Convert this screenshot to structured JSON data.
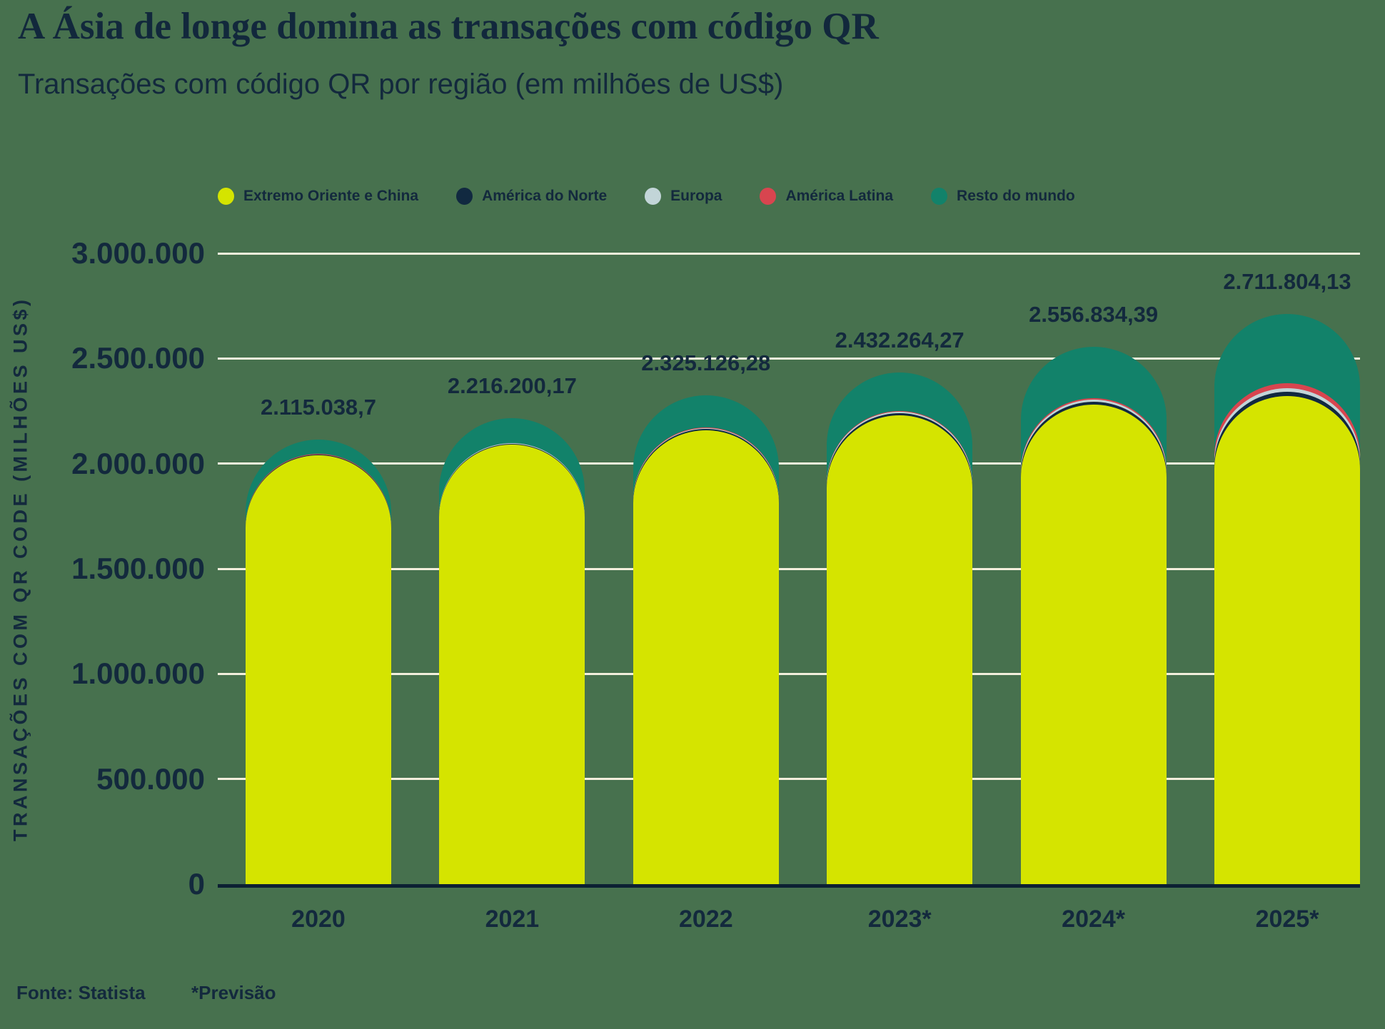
{
  "header": {
    "title": "A Ásia de longe domina as transações com código QR",
    "subtitle": "Transações com código QR por região (em milhões de US$)"
  },
  "legend": [
    {
      "label": "Extremo Oriente e China",
      "color": "#d5e400"
    },
    {
      "label": "América do Norte",
      "color": "#112940"
    },
    {
      "label": "Europa",
      "color": "#c2d5d8"
    },
    {
      "label": "América Latina",
      "color": "#d8454f"
    },
    {
      "label": "Resto do mundo",
      "color": "#12826a"
    }
  ],
  "y_axis": {
    "title": "TRANSAÇÕES COM QR CODE (MILHÕES US$)",
    "ticks": [
      {
        "value": 3000000,
        "label": "3.000.000"
      },
      {
        "value": 2500000,
        "label": "2.500.000"
      },
      {
        "value": 2000000,
        "label": "2.000.000"
      },
      {
        "value": 1500000,
        "label": "1.500.000"
      },
      {
        "value": 1000000,
        "label": "1.000.000"
      },
      {
        "value": 500000,
        "label": "500.000"
      },
      {
        "value": 0,
        "label": "0"
      }
    ]
  },
  "footer": {
    "source": "Fonte: Statista",
    "note": "*Previsão"
  },
  "colors": {
    "background": "#47714e",
    "text": "#13293d",
    "gridline": "#f3eedc",
    "axis_line": "#0c2033"
  },
  "chart_data": {
    "type": "bar",
    "stacked": true,
    "title": "Transações com código QR por região (em milhões de US$)",
    "xlabel": "",
    "ylabel": "TRANSAÇÕES COM QR CODE (MILHÕES US$)",
    "ylim": [
      0,
      3000000
    ],
    "grid": true,
    "legend_position": "top",
    "categories": [
      "2020",
      "2021",
      "2022",
      "2023*",
      "2024*",
      "2025*"
    ],
    "totals": [
      2115038.7,
      2216200.17,
      2325126.28,
      2432264.27,
      2556834.39,
      2711804.13
    ],
    "total_labels": [
      "2.115.038,7",
      "2.216.200,17",
      "2.325.126,28",
      "2.432.264,27",
      "2.556.834,39",
      "2.711.804,13"
    ],
    "segments_estimated": true,
    "series": [
      {
        "name": "Extremo Oriente e China",
        "color": "#d5e400",
        "values": [
          2040000,
          2090000,
          2160000,
          2230000,
          2280000,
          2320000
        ]
      },
      {
        "name": "América do Norte",
        "color": "#112940",
        "values": [
          2500,
          3500,
          5000,
          9000,
          13000,
          22000
        ]
      },
      {
        "name": "Europa",
        "color": "#c2d5d8",
        "values": [
          2000,
          2700,
          3800,
          6000,
          10000,
          16000
        ]
      },
      {
        "name": "América Latina",
        "color": "#d8454f",
        "values": [
          1500,
          2000,
          3000,
          4500,
          6500,
          23000
        ]
      },
      {
        "name": "Resto do mundo",
        "color": "#12826a",
        "values": [
          69038.7,
          118000.17,
          153326.28,
          182764.27,
          247334.39,
          330804.13
        ]
      }
    ]
  }
}
